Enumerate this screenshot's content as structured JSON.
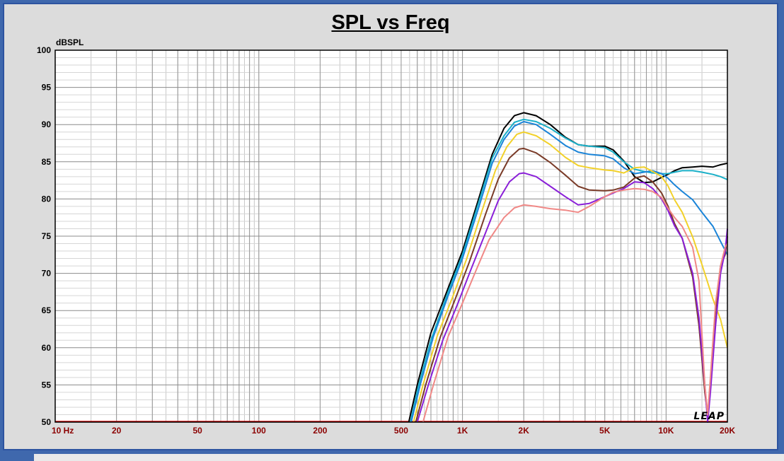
{
  "chart_data": {
    "type": "line",
    "title": "SPL vs Freq",
    "ylabel": "dBSPL",
    "xlabel": "",
    "xscale": "log",
    "xlim": [
      10,
      20000
    ],
    "ylim": [
      50,
      100
    ],
    "grid": true,
    "y_ticks": [
      100,
      95,
      90,
      85,
      80,
      75,
      70,
      65,
      60,
      55,
      50
    ],
    "x_tick_labels": [
      {
        "value": 10,
        "label": "10  Hz"
      },
      {
        "value": 20,
        "label": "20"
      },
      {
        "value": 50,
        "label": "50"
      },
      {
        "value": 100,
        "label": "100"
      },
      {
        "value": 200,
        "label": "200"
      },
      {
        "value": 500,
        "label": "500"
      },
      {
        "value": 1000,
        "label": "1K"
      },
      {
        "value": 2000,
        "label": "2K"
      },
      {
        "value": 5000,
        "label": "5K"
      },
      {
        "value": 10000,
        "label": "10K"
      },
      {
        "value": 20000,
        "label": "20K"
      }
    ],
    "watermark": "LEAP",
    "colors": {
      "background": "#dcdcdc",
      "plot_background": "#ffffff",
      "tick_label": "#8b0000",
      "baseline": "#d60000"
    },
    "series": [
      {
        "color": "#000000",
        "points": [
          [
            545,
            50
          ],
          [
            600,
            55
          ],
          [
            700,
            62
          ],
          [
            850,
            68
          ],
          [
            1000,
            73
          ],
          [
            1200,
            80
          ],
          [
            1400,
            86
          ],
          [
            1600,
            89.5
          ],
          [
            1800,
            91.2
          ],
          [
            2000,
            91.6
          ],
          [
            2300,
            91.2
          ],
          [
            2700,
            90
          ],
          [
            3200,
            88.3
          ],
          [
            3700,
            87.3
          ],
          [
            4200,
            87.1
          ],
          [
            5000,
            87.1
          ],
          [
            5500,
            86.6
          ],
          [
            6200,
            85.1
          ],
          [
            7000,
            83
          ],
          [
            7800,
            82.2
          ],
          [
            8600,
            82.3
          ],
          [
            9500,
            82.9
          ],
          [
            10200,
            83.3
          ],
          [
            11000,
            83.8
          ],
          [
            12000,
            84.2
          ],
          [
            13500,
            84.3
          ],
          [
            15000,
            84.4
          ],
          [
            17000,
            84.3
          ],
          [
            18500,
            84.6
          ],
          [
            20000,
            84.8
          ]
        ]
      },
      {
        "color": "#1bb0c8",
        "points": [
          [
            555,
            50
          ],
          [
            610,
            55
          ],
          [
            700,
            61
          ],
          [
            850,
            67.5
          ],
          [
            1000,
            72.5
          ],
          [
            1200,
            79.5
          ],
          [
            1400,
            85.5
          ],
          [
            1600,
            88.5
          ],
          [
            1800,
            90.3
          ],
          [
            2000,
            90.7
          ],
          [
            2300,
            90.4
          ],
          [
            2700,
            89.5
          ],
          [
            3200,
            88.2
          ],
          [
            3700,
            87.3
          ],
          [
            4200,
            87.1
          ],
          [
            5000,
            86.9
          ],
          [
            5500,
            86.3
          ],
          [
            6200,
            85
          ],
          [
            7000,
            84
          ],
          [
            7800,
            83.7
          ],
          [
            8600,
            83.5
          ],
          [
            9500,
            83.4
          ],
          [
            10200,
            83.4
          ],
          [
            11000,
            83.6
          ],
          [
            12000,
            83.8
          ],
          [
            13500,
            83.8
          ],
          [
            15000,
            83.6
          ],
          [
            17000,
            83.3
          ],
          [
            18500,
            83
          ],
          [
            20000,
            82.6
          ]
        ]
      },
      {
        "color": "#1a84d8",
        "points": [
          [
            560,
            50
          ],
          [
            620,
            55
          ],
          [
            720,
            61.5
          ],
          [
            850,
            67
          ],
          [
            1000,
            72
          ],
          [
            1200,
            78.8
          ],
          [
            1400,
            84.8
          ],
          [
            1600,
            88
          ],
          [
            1800,
            89.8
          ],
          [
            2000,
            90.4
          ],
          [
            2300,
            90
          ],
          [
            2700,
            88.7
          ],
          [
            3200,
            87.2
          ],
          [
            3700,
            86.3
          ],
          [
            4200,
            86
          ],
          [
            5000,
            85.8
          ],
          [
            5500,
            85.4
          ],
          [
            6200,
            84.2
          ],
          [
            7000,
            83.4
          ],
          [
            7800,
            83.6
          ],
          [
            8600,
            83.8
          ],
          [
            9500,
            83.4
          ],
          [
            10200,
            82.8
          ],
          [
            11000,
            81.9
          ],
          [
            12000,
            81
          ],
          [
            13500,
            79.9
          ],
          [
            15000,
            78.2
          ],
          [
            17000,
            76.3
          ],
          [
            18500,
            74.3
          ],
          [
            20000,
            72.5
          ]
        ]
      },
      {
        "color": "#f2d12a",
        "points": [
          [
            575,
            50
          ],
          [
            640,
            55
          ],
          [
            750,
            61.5
          ],
          [
            900,
            67
          ],
          [
            1050,
            72
          ],
          [
            1250,
            78.5
          ],
          [
            1450,
            83.8
          ],
          [
            1650,
            87
          ],
          [
            1850,
            88.7
          ],
          [
            2000,
            89
          ],
          [
            2300,
            88.5
          ],
          [
            2700,
            87.3
          ],
          [
            3200,
            85.6
          ],
          [
            3700,
            84.5
          ],
          [
            4200,
            84.2
          ],
          [
            5000,
            83.9
          ],
          [
            5500,
            83.8
          ],
          [
            6200,
            83.5
          ],
          [
            7000,
            84.2
          ],
          [
            7800,
            84.3
          ],
          [
            8600,
            83.7
          ],
          [
            9500,
            83
          ],
          [
            10200,
            81.8
          ],
          [
            11000,
            79.9
          ],
          [
            12000,
            78.2
          ],
          [
            13500,
            74.9
          ],
          [
            15000,
            71.2
          ],
          [
            17000,
            66.5
          ],
          [
            18500,
            63.8
          ],
          [
            20000,
            60
          ]
        ]
      },
      {
        "color": "#7a3b28",
        "points": [
          [
            590,
            50
          ],
          [
            660,
            55
          ],
          [
            780,
            61.5
          ],
          [
            920,
            66.5
          ],
          [
            1080,
            71.5
          ],
          [
            1300,
            78
          ],
          [
            1500,
            82.7
          ],
          [
            1700,
            85.5
          ],
          [
            1900,
            86.7
          ],
          [
            2000,
            86.8
          ],
          [
            2300,
            86.2
          ],
          [
            2700,
            84.9
          ],
          [
            3200,
            83.2
          ],
          [
            3700,
            81.7
          ],
          [
            4200,
            81.2
          ],
          [
            5000,
            81.1
          ],
          [
            5500,
            81.2
          ],
          [
            6200,
            81.6
          ],
          [
            7000,
            82.8
          ],
          [
            7800,
            83.1
          ],
          [
            8600,
            82.3
          ],
          [
            9500,
            80.8
          ],
          [
            10200,
            79.1
          ],
          [
            11000,
            76.7
          ],
          [
            12000,
            74.7
          ],
          [
            13500,
            69.5
          ],
          [
            14500,
            63
          ],
          [
            15500,
            54
          ],
          [
            16000,
            51
          ],
          [
            16500,
            55
          ],
          [
            17500,
            65
          ],
          [
            18500,
            71
          ],
          [
            19500,
            72.5
          ],
          [
            20000,
            75
          ]
        ]
      },
      {
        "color": "#8a1fd8",
        "points": [
          [
            600,
            50
          ],
          [
            680,
            55
          ],
          [
            800,
            61
          ],
          [
            950,
            66
          ],
          [
            1100,
            70.5
          ],
          [
            1300,
            75.5
          ],
          [
            1500,
            79.8
          ],
          [
            1700,
            82.3
          ],
          [
            1900,
            83.4
          ],
          [
            2000,
            83.5
          ],
          [
            2300,
            83
          ],
          [
            2700,
            81.7
          ],
          [
            3200,
            80.3
          ],
          [
            3700,
            79.2
          ],
          [
            4200,
            79.4
          ],
          [
            5000,
            80.3
          ],
          [
            5500,
            80.8
          ],
          [
            6200,
            81.4
          ],
          [
            7000,
            82.3
          ],
          [
            7800,
            82.2
          ],
          [
            8600,
            81.4
          ],
          [
            9500,
            80
          ],
          [
            10200,
            78.5
          ],
          [
            11000,
            76.4
          ],
          [
            12000,
            74.7
          ],
          [
            13500,
            70
          ],
          [
            14500,
            64
          ],
          [
            15500,
            55
          ],
          [
            16000,
            50
          ],
          [
            16500,
            54
          ],
          [
            17500,
            63
          ],
          [
            18500,
            70
          ],
          [
            19500,
            73
          ],
          [
            20000,
            76
          ]
        ]
      },
      {
        "color": "#f08886",
        "points": [
          [
            640,
            50
          ],
          [
            720,
            55
          ],
          [
            850,
            61.5
          ],
          [
            1000,
            66
          ],
          [
            1150,
            70
          ],
          [
            1350,
            74.5
          ],
          [
            1600,
            77.5
          ],
          [
            1800,
            78.8
          ],
          [
            2000,
            79.2
          ],
          [
            2300,
            79
          ],
          [
            2700,
            78.7
          ],
          [
            3200,
            78.5
          ],
          [
            3700,
            78.2
          ],
          [
            4200,
            79
          ],
          [
            5000,
            80.3
          ],
          [
            5500,
            80.9
          ],
          [
            6200,
            81.2
          ],
          [
            7000,
            81.4
          ],
          [
            7800,
            81.3
          ],
          [
            8600,
            81
          ],
          [
            9500,
            80.2
          ],
          [
            10200,
            78.8
          ],
          [
            11000,
            77.5
          ],
          [
            12000,
            76.3
          ],
          [
            13500,
            73.5
          ],
          [
            14500,
            69
          ],
          [
            15500,
            55
          ],
          [
            16000,
            51
          ],
          [
            16500,
            56
          ],
          [
            17500,
            66
          ],
          [
            18500,
            71
          ],
          [
            19500,
            73.5
          ],
          [
            20000,
            74
          ]
        ]
      }
    ]
  }
}
